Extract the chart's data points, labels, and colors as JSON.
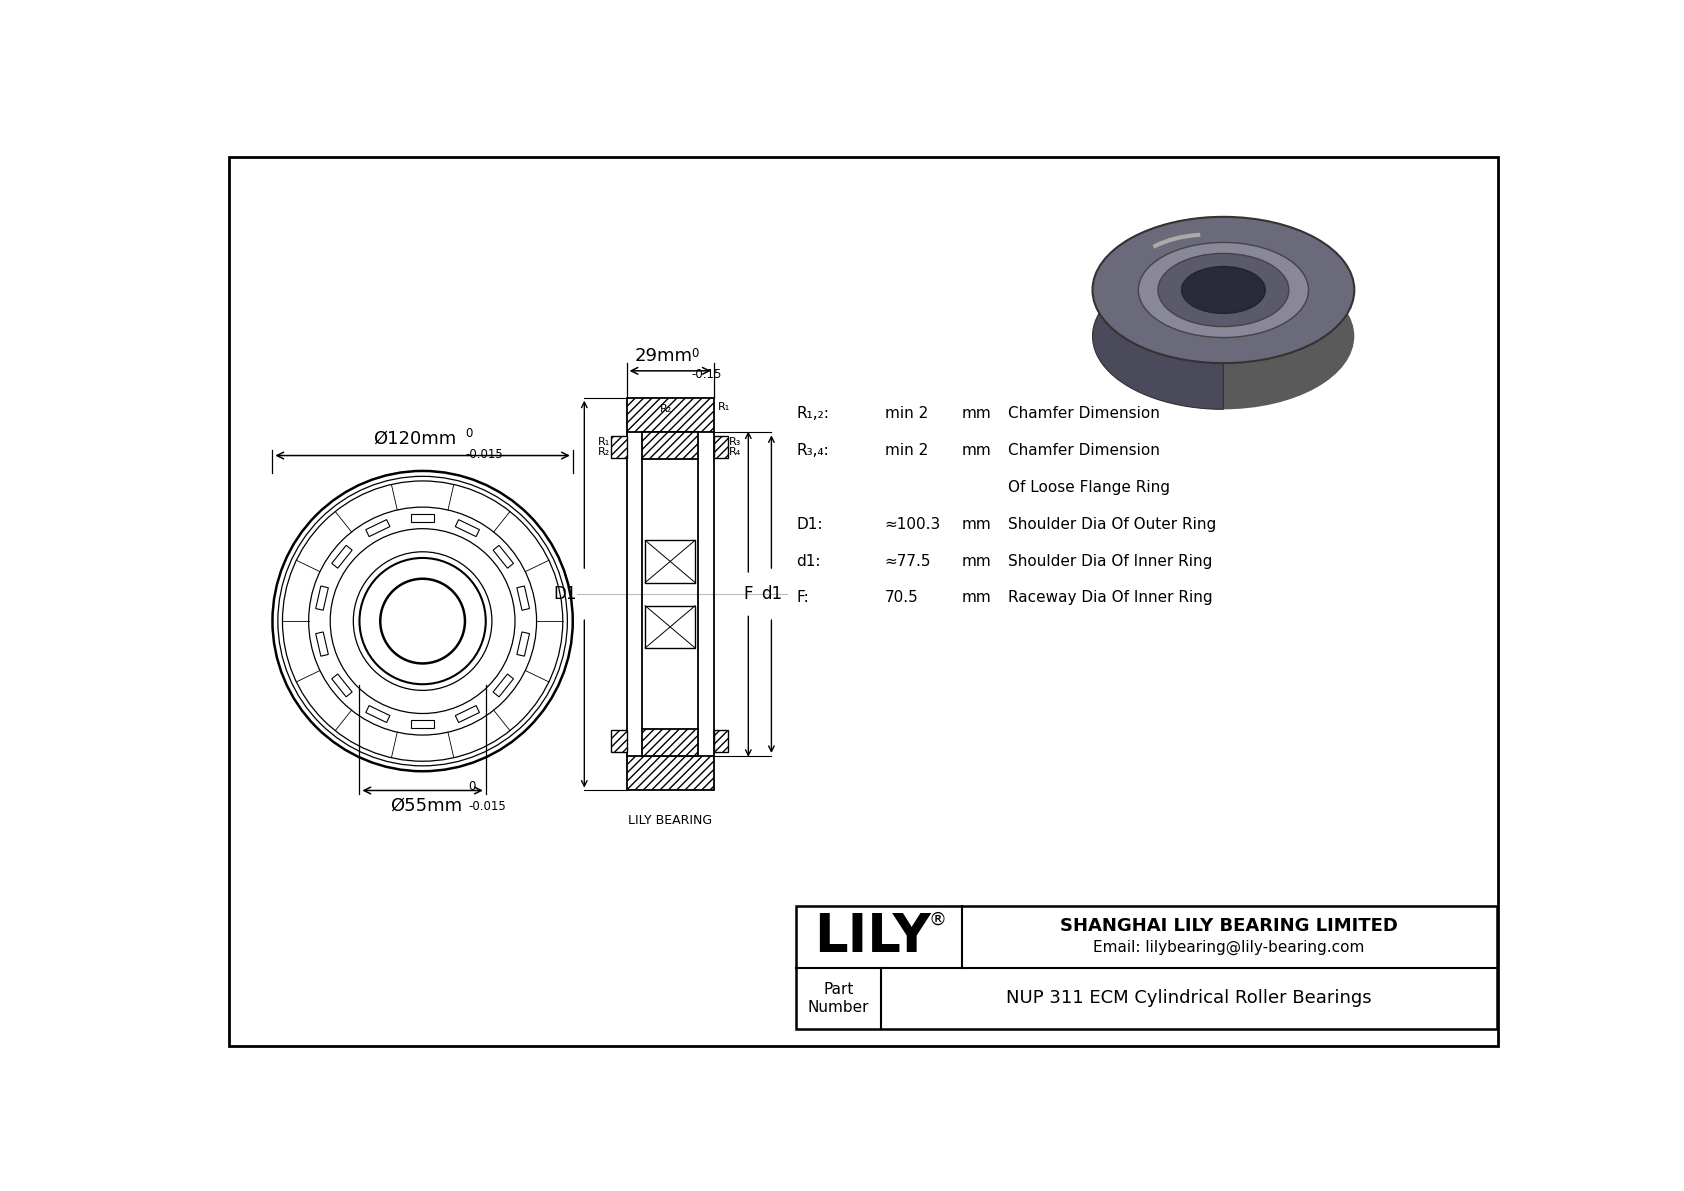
{
  "bg_color": "#ffffff",
  "border_color": "#000000",
  "outer_dim_label": "Ø120mm",
  "outer_dim_tol_top": "0",
  "outer_dim_tol_bot": "-0.015",
  "inner_dim_label": "Ø55mm",
  "inner_dim_tol_top": "0",
  "inner_dim_tol_bot": "-0.015",
  "width_dim_label": "29mm",
  "width_dim_tol_top": "0",
  "width_dim_tol_bot": "-0.15",
  "params": [
    {
      "label": "R₁,₂:",
      "value": "min 2",
      "unit": "mm",
      "desc": "Chamfer Dimension"
    },
    {
      "label": "R₃,₄:",
      "value": "min 2",
      "unit": "mm",
      "desc": "Chamfer Dimension"
    },
    {
      "label": "",
      "value": "",
      "unit": "",
      "desc": "Of Loose Flange Ring"
    },
    {
      "label": "D1:",
      "value": "≈100.3",
      "unit": "mm",
      "desc": "Shoulder Dia Of Outer Ring"
    },
    {
      "label": "d1:",
      "value": "≈77.5",
      "unit": "mm",
      "desc": "Shoulder Dia Of Inner Ring"
    },
    {
      "label": "F:",
      "value": "70.5",
      "unit": "mm",
      "desc": "Raceway Dia Of Inner Ring"
    }
  ],
  "company_name": "LILY",
  "company_registered": "®",
  "company_full": "SHANGHAI LILY BEARING LIMITED",
  "company_email": "Email: lilybearing@lily-bearing.com",
  "part_label": "Part\nNumber",
  "part_number": "NUP 311 ECM Cylindrical Roller Bearings",
  "lily_bearing_label": "LILY BEARING"
}
